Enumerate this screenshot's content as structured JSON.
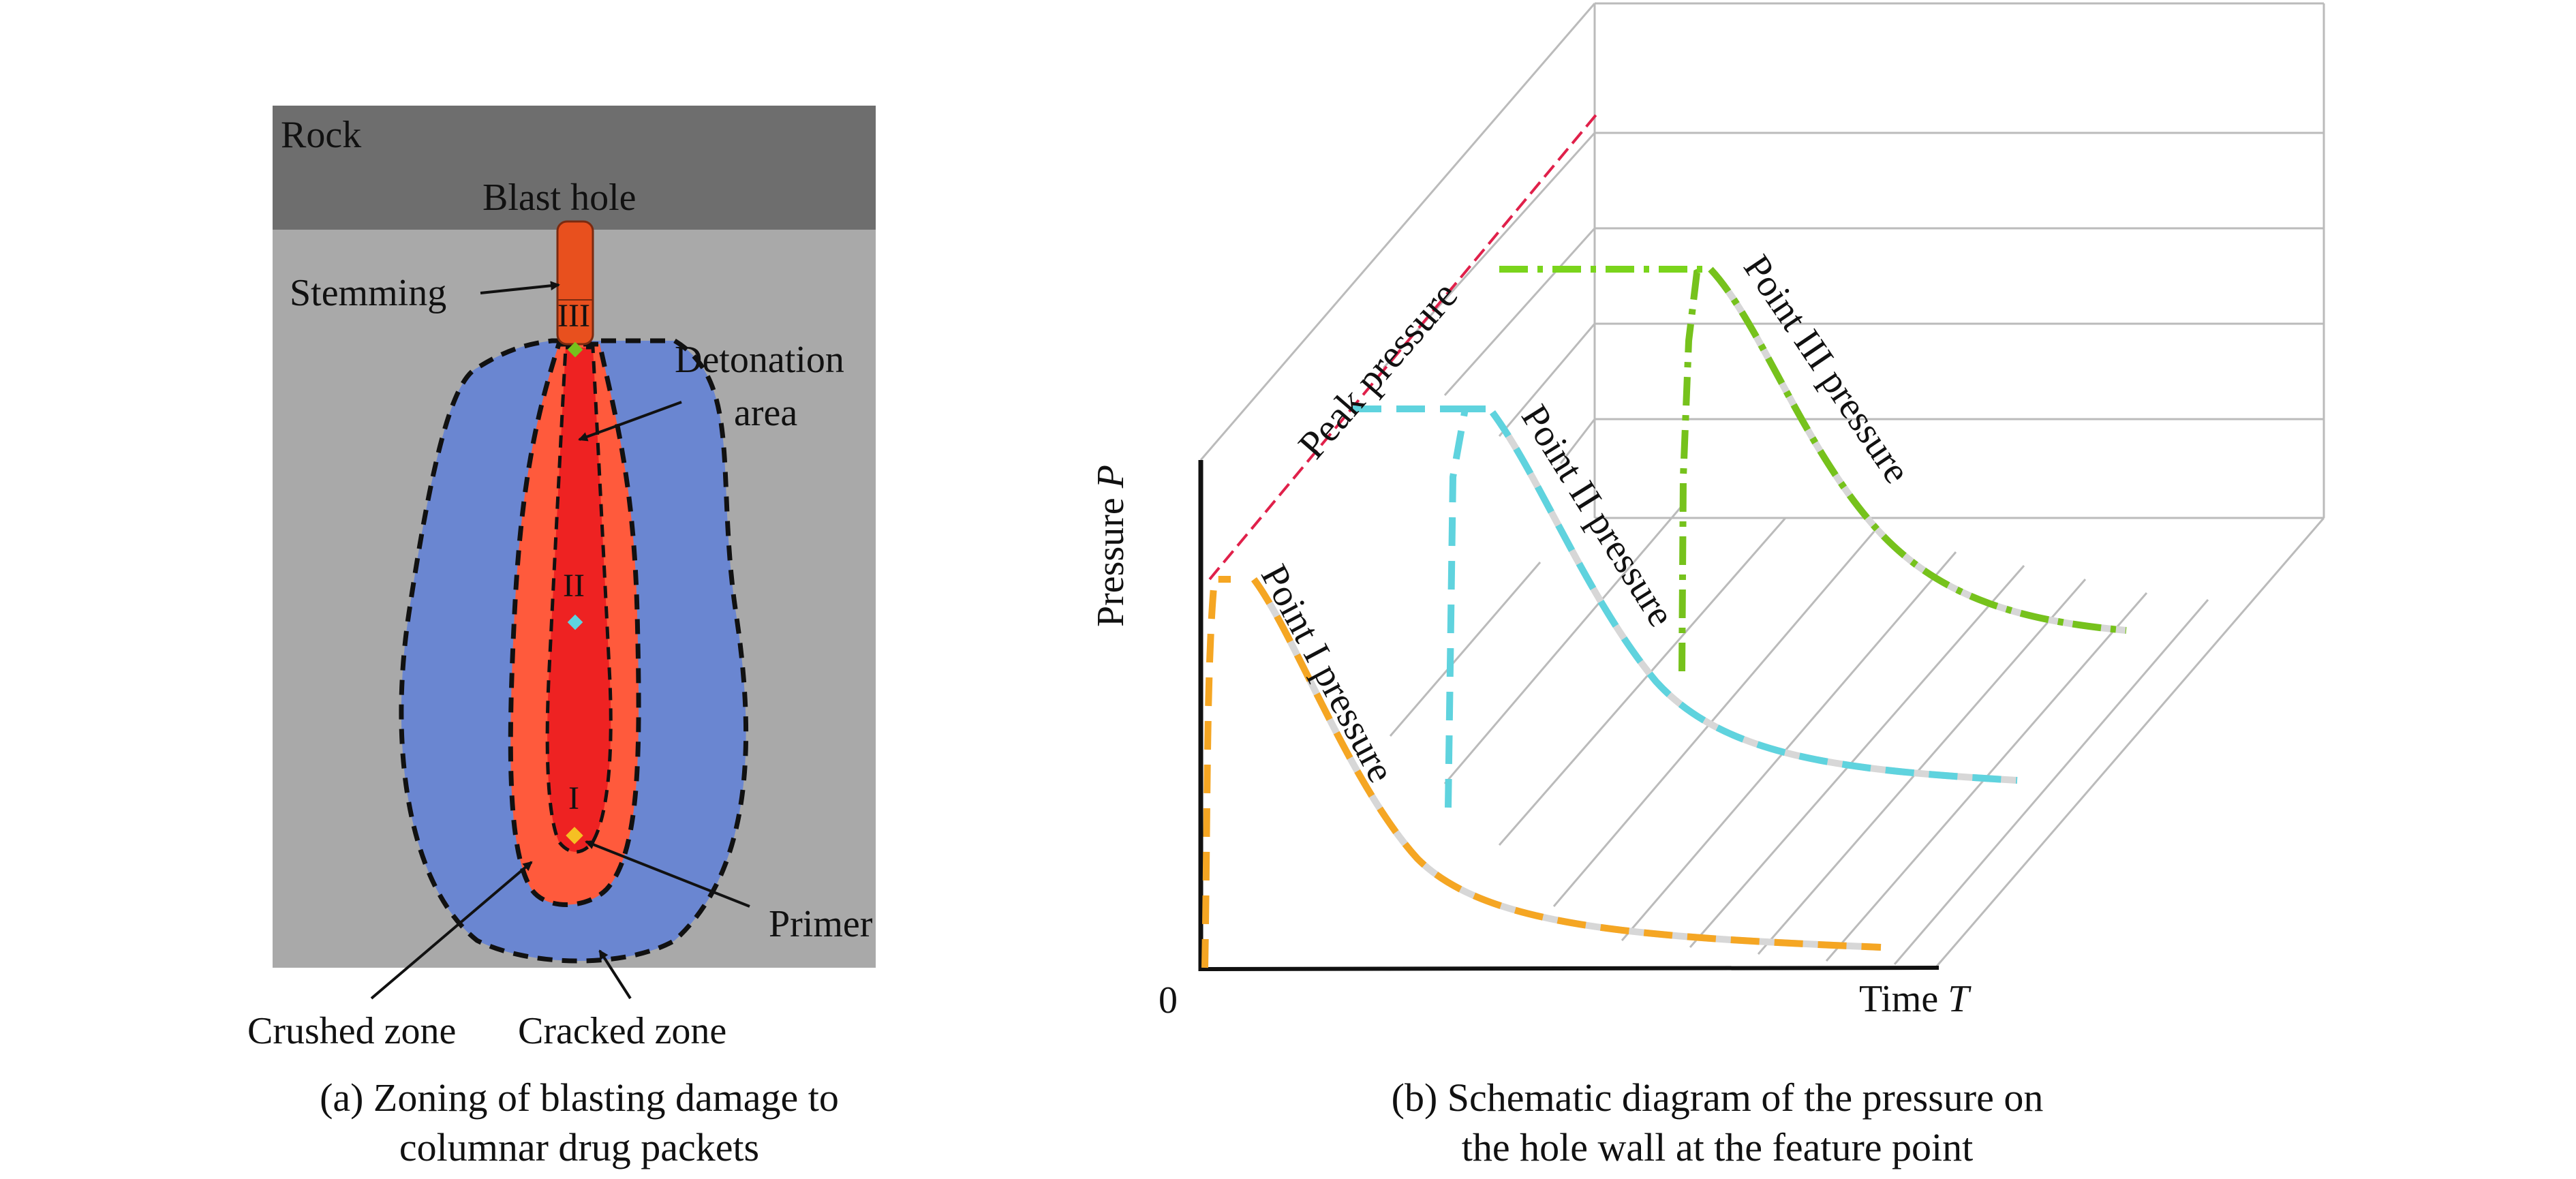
{
  "panel_a": {
    "labels": {
      "rock": "Rock",
      "blast_hole": "Blast hole",
      "stemming": "Stemming",
      "detonation_area_line1": "Detonation",
      "detonation_area_line2": "area",
      "primer": "Primer",
      "crushed_zone": "Crushed zone",
      "cracked_zone": "Cracked zone",
      "point_1": "I",
      "point_2": "II",
      "point_3": "III"
    },
    "caption_line1": "(a) Zoning of blasting damage to",
    "caption_line2": "columnar drug packets",
    "colors": {
      "rock": "#6e6e6e",
      "background": "#a9a9a9",
      "cracked_zone": "#6a86d1",
      "crushed_zone": "#ff5a3c",
      "detonation_area": "#ee2222",
      "stemming": "#e8501e"
    }
  },
  "panel_b": {
    "labels": {
      "y_axis": "Pressure",
      "y_axis_symbol": "P",
      "x_axis": "Time",
      "x_axis_symbol": "T",
      "origin": "0",
      "peak_pressure": "Peak pressure",
      "curve_1": "Point I pressure",
      "curve_2": "Point II pressure",
      "curve_3": "Point III pressure"
    },
    "caption_line1": "(b) Schematic diagram of the pressure on",
    "caption_line2": "the hole wall at the feature point",
    "colors": {
      "curve_1": "#f5a623",
      "curve_2": "#5fd3de",
      "curve_3": "#76c21c",
      "peak_line": "#e0204a",
      "grid": "#bbbbbb"
    }
  }
}
